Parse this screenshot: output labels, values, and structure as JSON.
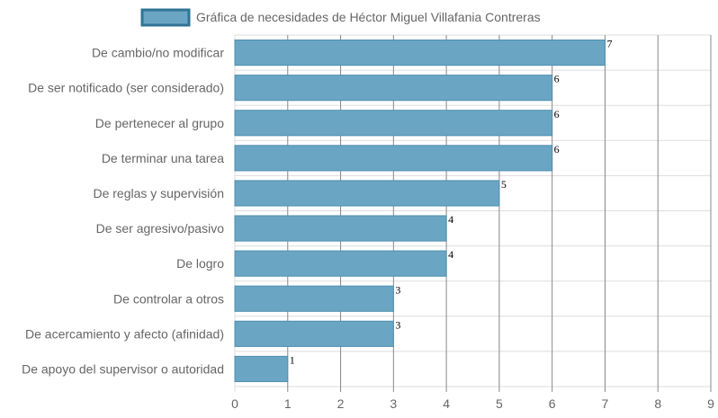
{
  "chart_data": {
    "type": "bar",
    "orientation": "horizontal",
    "categories": [
      "De cambio/no modificar",
      "De ser notificado (ser considerado)",
      "De pertenecer al grupo",
      "De terminar una tarea",
      "De reglas y supervisión",
      "De ser agresivo/pasivo",
      "De logro",
      "De controlar a otros",
      "De acercamiento y afecto (afinidad)",
      "De apoyo del supervisor o autoridad"
    ],
    "series": [
      {
        "name": "Gráfica de necesidades de Héctor Miguel Villafania Contreras",
        "values": [
          7,
          6,
          6,
          6,
          5,
          4,
          4,
          3,
          3,
          1
        ]
      }
    ],
    "xlim": [
      0,
      9
    ],
    "x_ticks": [
      "0",
      "1",
      "2",
      "3",
      "4",
      "5",
      "6",
      "7",
      "8",
      "9"
    ],
    "grid": true,
    "legend_position": "top",
    "colors": {
      "bar_fill": "#6aa5c4",
      "bar_stroke": "#4f8fb0",
      "legend_fill": "#6aa5c4",
      "legend_stroke": "#2f7396",
      "grid": "#dddddd",
      "grid_strong": "#888888"
    }
  }
}
